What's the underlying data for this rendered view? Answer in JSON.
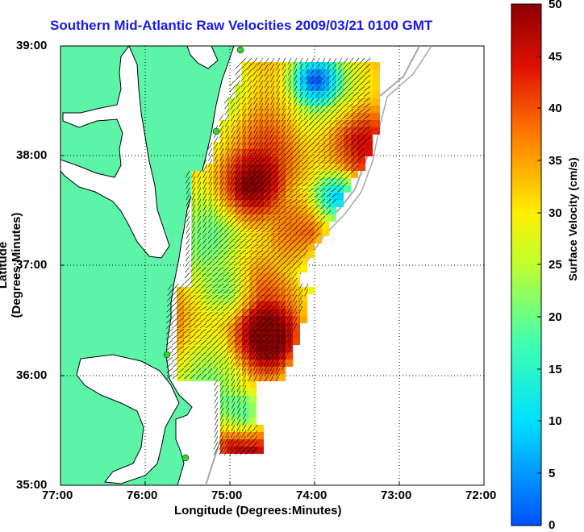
{
  "title": "Southern Mid-Atlantic Raw Velocities 2009/03/21 0100 GMT",
  "axes": {
    "xlabel": "Longitude (Degrees:Minutes)",
    "ylabel": "Latitude (Degrees:Minutes)",
    "x_ticks": [
      "77:00",
      "76:00",
      "75:00",
      "74:00",
      "73:00",
      "72:00"
    ],
    "y_ticks": [
      "39:00",
      "38:00",
      "37:00",
      "36:00",
      "35:00"
    ],
    "x_range_deg_west": [
      77,
      72
    ],
    "y_range_deg_north": [
      35,
      39
    ],
    "grid": "dotted"
  },
  "colorbar": {
    "label": "Surface Velocity (cm/s)",
    "ticks": [
      "50",
      "45",
      "40",
      "35",
      "30",
      "25",
      "20",
      "15",
      "10",
      "5",
      "0"
    ],
    "range": [
      0,
      50
    ],
    "colormap": "jet"
  },
  "colors": {
    "land": "#5cf5a8",
    "title": "#1a1ae6",
    "coast": "#000000",
    "bathymetry": "#a8a8a8",
    "station": "#2fd42f"
  },
  "map_data": {
    "type": "hf-radar-surface-currents",
    "dominant_flow": "southwest",
    "fastest_area": "offshore of Delmarva and off the Outer Banks, above 40 cm/s",
    "slow_areas": [
      "near 38:40 N 74:30 W",
      "near 37:50 N 73:50 W",
      "patch near 35:40 N 75:00 W"
    ],
    "stations": [
      {
        "lat": 38.97,
        "lon": -74.85
      },
      {
        "lat": 38.23,
        "lon": -75.1
      },
      {
        "lat": 36.17,
        "lon": -75.73
      },
      {
        "lat": 35.24,
        "lon": -75.53
      }
    ]
  }
}
